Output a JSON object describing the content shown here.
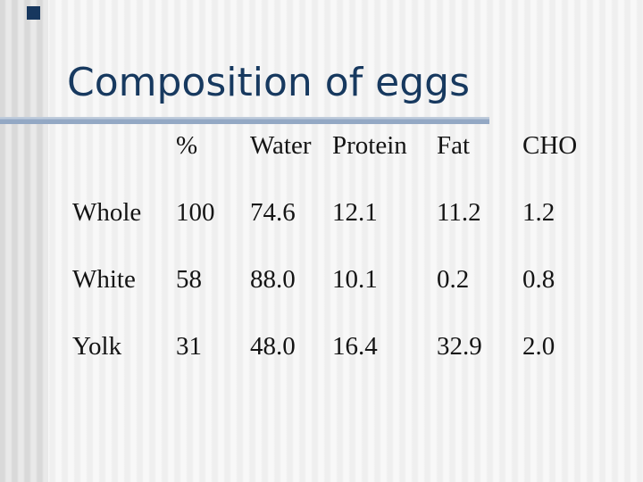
{
  "slide": {
    "title": "Composition of eggs"
  },
  "table": {
    "headers": [
      "%",
      "Water",
      "Protein",
      "Fat",
      "CHO"
    ],
    "rows": [
      {
        "label": "Whole",
        "cells": [
          "100",
          "74.6",
          "12.1",
          "11.2",
          "1.2"
        ]
      },
      {
        "label": "White",
        "cells": [
          "58",
          "88.0",
          "10.1",
          "0.2",
          "0.8"
        ]
      },
      {
        "label": "Yolk",
        "cells": [
          "31",
          "48.0",
          "16.4",
          "32.9",
          "2.0"
        ]
      }
    ]
  },
  "colors": {
    "title_navy": "#17395f",
    "rule_blue": "#93a8c4",
    "accent_square_navy": "#17375e",
    "table_text": "#141414",
    "stripe_light": "#f8f8f8",
    "stripe_dark": "#efefef",
    "band_stripe_light": "#e9e9e9",
    "band_stripe_dark": "#d9d9d9"
  }
}
